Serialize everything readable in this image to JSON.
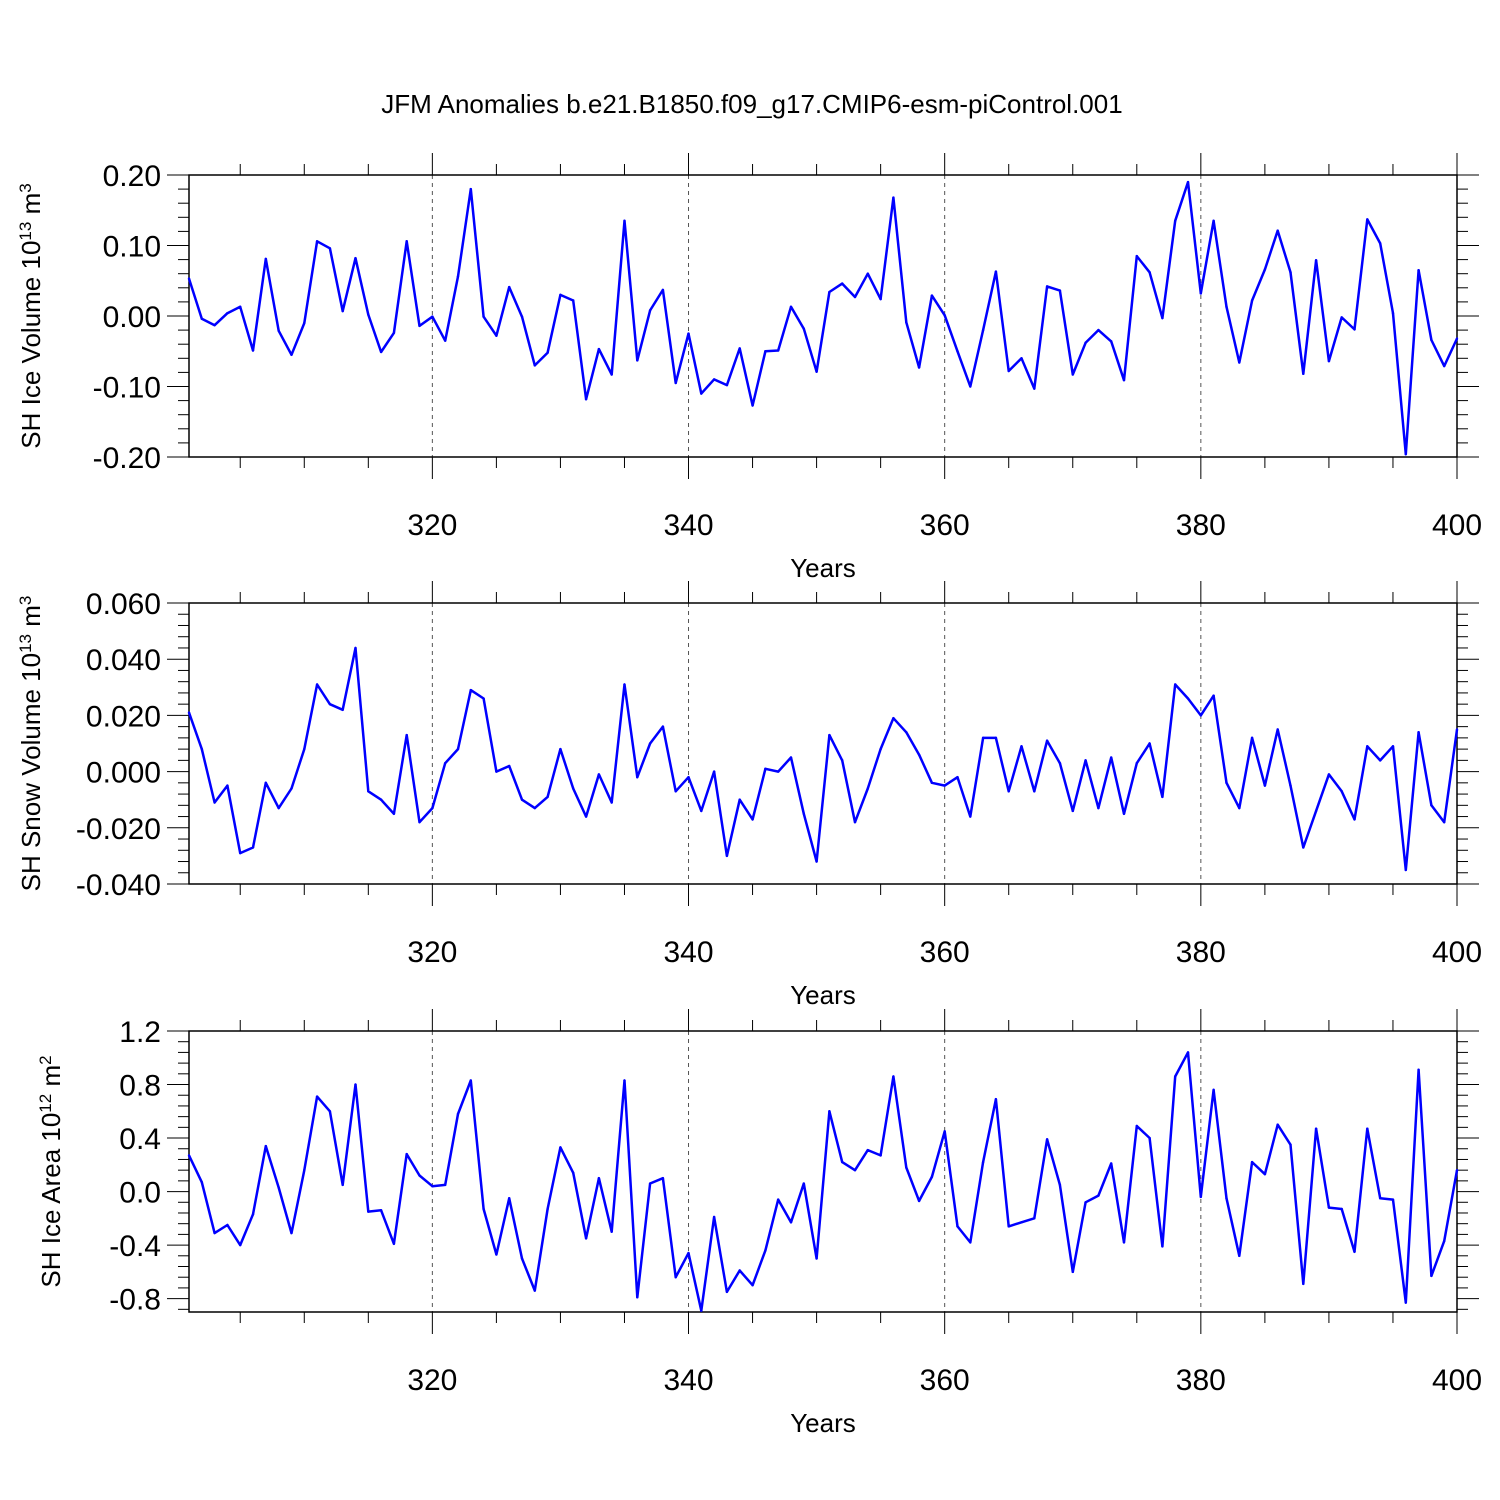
{
  "title": "JFM Anomalies b.e21.B1850.f09_g17.CMIP6-esm-piControl.001",
  "chart_data": [
    {
      "type": "line",
      "id": "ice-volume",
      "ylabel": {
        "main": "SH Ice Volume 10",
        "sup": "13",
        "unit": " m",
        "unit_sup": "3"
      },
      "xlabel": "Years",
      "xlim": [
        301,
        400
      ],
      "ylim": [
        -0.2,
        0.2
      ],
      "yticks": [
        -0.2,
        -0.1,
        0.0,
        0.1,
        0.2
      ],
      "ytick_labels": [
        "-0.20",
        "-0.10",
        "0.00",
        "0.10",
        "0.20"
      ],
      "xticks": [
        320,
        340,
        360,
        380,
        400
      ],
      "xtick_labels": [
        "320",
        "340",
        "360",
        "380",
        "400"
      ],
      "line_color": "#0000ff",
      "series": [
        {
          "name": "SH Ice Volume",
          "values": [
            0.053,
            -0.004,
            -0.013,
            0.004,
            0.013,
            -0.049,
            0.081,
            -0.021,
            -0.055,
            -0.01,
            0.106,
            0.096,
            0.007,
            0.082,
            0.002,
            -0.051,
            -0.024,
            0.106,
            -0.014,
            -0.001,
            -0.035,
            0.056,
            0.18,
            -0.001,
            -0.028,
            0.041,
            -0.001,
            -0.07,
            -0.052,
            0.03,
            0.022,
            -0.118,
            -0.047,
            -0.083,
            0.135,
            -0.063,
            0.008,
            0.037,
            -0.095,
            -0.025,
            -0.11,
            -0.09,
            -0.098,
            -0.046,
            -0.127,
            -0.05,
            -0.049,
            0.013,
            -0.018,
            -0.079,
            0.034,
            0.046,
            0.027,
            0.06,
            0.024,
            0.168,
            -0.009,
            -0.073,
            0.029,
            0.001,
            -0.05,
            -0.1,
            -0.02,
            0.063,
            -0.078,
            -0.06,
            -0.103,
            0.042,
            0.036,
            -0.083,
            -0.038,
            -0.02,
            -0.036,
            -0.091,
            0.085,
            0.062,
            -0.003,
            0.135,
            0.19,
            0.032,
            0.135,
            0.013,
            -0.066,
            0.022,
            0.066,
            0.121,
            0.062,
            -0.082,
            0.079,
            -0.064,
            -0.002,
            -0.019,
            0.137,
            0.103,
            0.004,
            -0.196,
            0.065,
            -0.034,
            -0.071,
            -0.032
          ]
        }
      ]
    },
    {
      "type": "line",
      "id": "snow-volume",
      "ylabel": {
        "main": "SH Snow Volume 10",
        "sup": "13",
        "unit": " m",
        "unit_sup": "3"
      },
      "xlabel": "Years",
      "xlim": [
        301,
        400
      ],
      "ylim": [
        -0.04,
        0.06
      ],
      "yticks": [
        -0.04,
        -0.02,
        0.0,
        0.02,
        0.04,
        0.06
      ],
      "ytick_labels": [
        "-0.040",
        "-0.020",
        "0.000",
        "0.020",
        "0.040",
        "0.060"
      ],
      "xticks": [
        320,
        340,
        360,
        380,
        400
      ],
      "xtick_labels": [
        "320",
        "340",
        "360",
        "380",
        "400"
      ],
      "line_color": "#0000ff",
      "series": [
        {
          "name": "SH Snow Volume",
          "values": [
            0.021,
            0.008,
            -0.011,
            -0.005,
            -0.029,
            -0.027,
            -0.004,
            -0.013,
            -0.006,
            0.008,
            0.031,
            0.024,
            0.022,
            0.044,
            -0.007,
            -0.01,
            -0.015,
            0.013,
            -0.018,
            -0.013,
            0.003,
            0.008,
            0.029,
            0.026,
            0.0,
            0.002,
            -0.01,
            -0.013,
            -0.009,
            0.008,
            -0.006,
            -0.016,
            -0.001,
            -0.011,
            0.031,
            -0.002,
            0.01,
            0.016,
            -0.007,
            -0.002,
            -0.014,
            0.0,
            -0.03,
            -0.01,
            -0.017,
            0.001,
            0.0,
            0.005,
            -0.015,
            -0.032,
            0.013,
            0.004,
            -0.018,
            -0.006,
            0.008,
            0.019,
            0.014,
            0.006,
            -0.004,
            -0.005,
            -0.002,
            -0.016,
            0.012,
            0.012,
            -0.007,
            0.009,
            -0.007,
            0.011,
            0.003,
            -0.014,
            0.004,
            -0.013,
            0.005,
            -0.015,
            0.003,
            0.01,
            -0.009,
            0.031,
            0.026,
            0.02,
            0.027,
            -0.004,
            -0.013,
            0.012,
            -0.005,
            0.015,
            -0.005,
            -0.027,
            -0.014,
            -0.001,
            -0.007,
            -0.017,
            0.009,
            0.004,
            0.009,
            -0.035,
            0.014,
            -0.012,
            -0.018,
            0.015
          ]
        }
      ]
    },
    {
      "type": "line",
      "id": "ice-area",
      "ylabel": {
        "main": "SH Ice Area 10",
        "sup": "12",
        "unit": " m",
        "unit_sup": "2"
      },
      "xlabel": "Years",
      "xlim": [
        301,
        400
      ],
      "ylim": [
        -0.9,
        1.2
      ],
      "yticks": [
        -0.8,
        -0.4,
        0.0,
        0.4,
        0.8,
        1.2
      ],
      "ytick_labels": [
        "-0.8",
        "-0.4",
        "0.0",
        "0.4",
        "0.8",
        "1.2"
      ],
      "xticks": [
        320,
        340,
        360,
        380,
        400
      ],
      "xtick_labels": [
        "320",
        "340",
        "360",
        "380",
        "400"
      ],
      "line_color": "#0000ff",
      "series": [
        {
          "name": "SH Ice Area",
          "values": [
            0.27,
            0.07,
            -0.31,
            -0.25,
            -0.4,
            -0.17,
            0.34,
            0.03,
            -0.31,
            0.16,
            0.71,
            0.6,
            0.05,
            0.8,
            -0.15,
            -0.14,
            -0.39,
            0.28,
            0.12,
            0.04,
            0.05,
            0.58,
            0.83,
            -0.13,
            -0.47,
            -0.05,
            -0.5,
            -0.74,
            -0.13,
            0.33,
            0.14,
            -0.35,
            0.1,
            -0.3,
            0.83,
            -0.79,
            0.06,
            0.1,
            -0.64,
            -0.46,
            -0.89,
            -0.19,
            -0.75,
            -0.59,
            -0.7,
            -0.44,
            -0.06,
            -0.23,
            0.06,
            -0.5,
            0.6,
            0.22,
            0.16,
            0.31,
            0.27,
            0.86,
            0.18,
            -0.07,
            0.11,
            0.45,
            -0.26,
            -0.38,
            0.22,
            0.69,
            -0.26,
            -0.23,
            -0.2,
            0.39,
            0.05,
            -0.6,
            -0.08,
            -0.03,
            0.21,
            -0.38,
            0.49,
            0.4,
            -0.41,
            0.86,
            1.04,
            -0.04,
            0.76,
            -0.05,
            -0.48,
            0.22,
            0.13,
            0.5,
            0.35,
            -0.69,
            0.47,
            -0.12,
            -0.13,
            -0.45,
            0.47,
            -0.05,
            -0.06,
            -0.83,
            0.91,
            -0.63,
            -0.37,
            0.16
          ]
        }
      ]
    }
  ]
}
